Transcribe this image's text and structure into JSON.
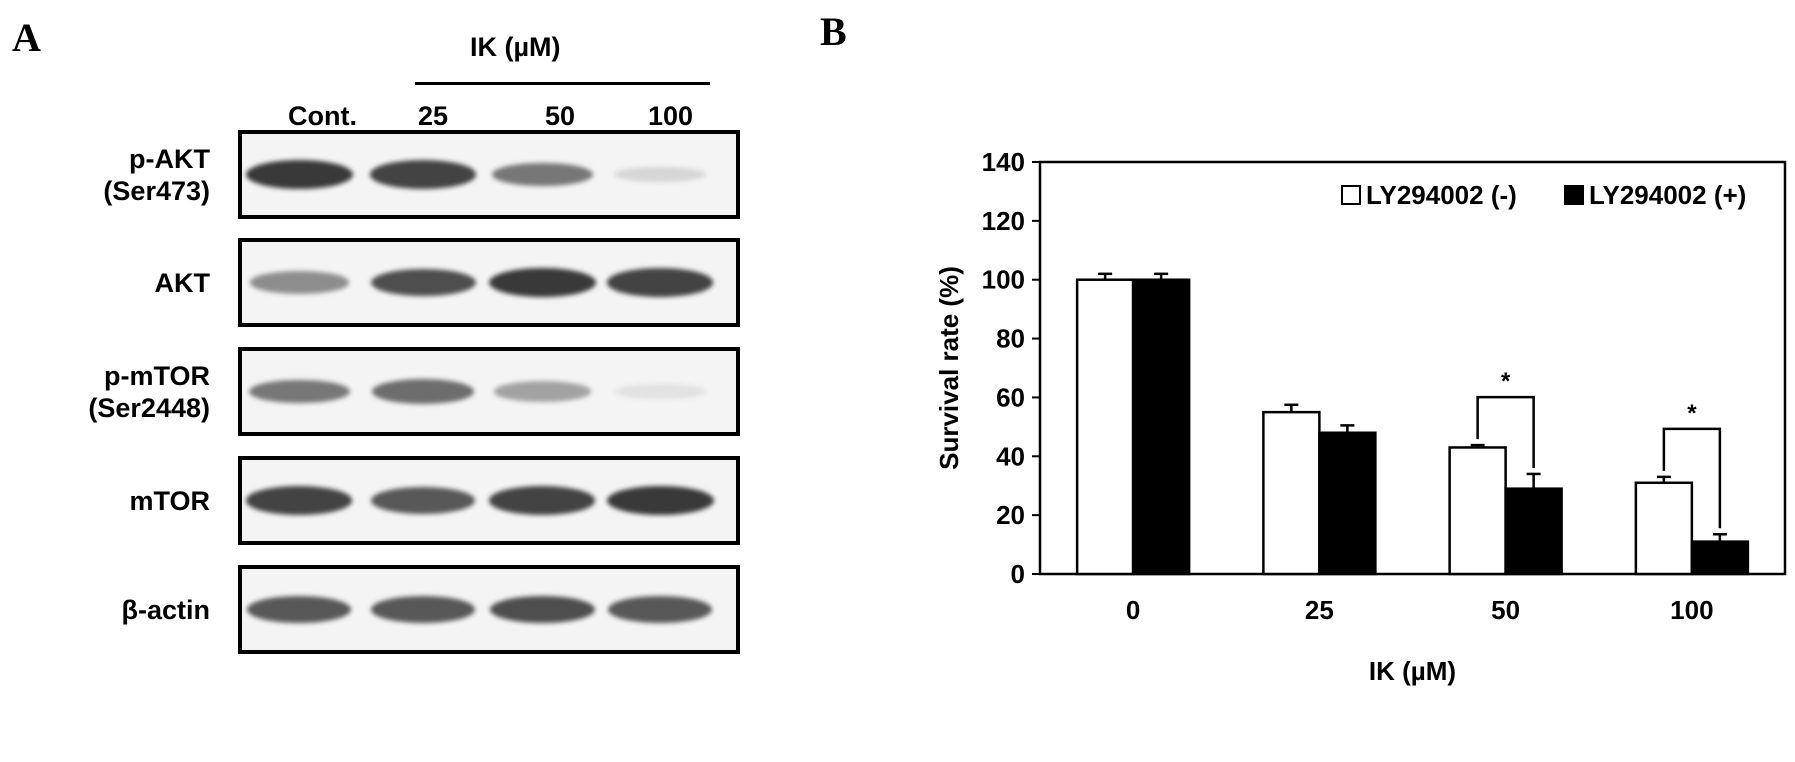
{
  "panel_a": {
    "letter": "A",
    "treatment_label": "IK (µM)",
    "lanes": [
      "Cont.",
      "25",
      "50",
      "100"
    ],
    "blots": [
      {
        "label": [
          "p-AKT",
          "(Ser473)"
        ],
        "intensity": [
          0.85,
          0.8,
          0.55,
          0.1
        ]
      },
      {
        "label": [
          "AKT"
        ],
        "intensity": [
          0.45,
          0.75,
          0.85,
          0.8
        ]
      },
      {
        "label": [
          "p-mTOR",
          "(Ser2448)"
        ],
        "intensity": [
          0.55,
          0.6,
          0.35,
          0.05
        ]
      },
      {
        "label": [
          "mTOR"
        ],
        "intensity": [
          0.8,
          0.7,
          0.8,
          0.85
        ]
      },
      {
        "label": [
          "β-actin"
        ],
        "intensity": [
          0.7,
          0.7,
          0.75,
          0.7
        ]
      }
    ]
  },
  "panel_b": {
    "letter": "B",
    "chart_data": {
      "type": "bar",
      "categories": [
        "0",
        "25",
        "50",
        "100"
      ],
      "series": [
        {
          "name": "LY294002 (-)",
          "values": [
            100,
            55,
            43,
            31
          ],
          "errors": [
            2,
            2.5,
            0.8,
            2
          ],
          "color": "#ffffff"
        },
        {
          "name": "LY294002 (+)",
          "values": [
            100,
            48,
            29,
            11
          ],
          "errors": [
            2,
            2.5,
            5,
            2.5
          ],
          "color": "#000000"
        }
      ],
      "xlabel": "IK (µM)",
      "ylabel": "Survival rate (%)",
      "ylim": [
        0,
        140
      ],
      "yticks": [
        0,
        20,
        40,
        60,
        80,
        100,
        120,
        140
      ],
      "legend_position": "top-right",
      "significance": [
        {
          "category": "50",
          "label": "*"
        },
        {
          "category": "100",
          "label": "*"
        }
      ]
    }
  }
}
